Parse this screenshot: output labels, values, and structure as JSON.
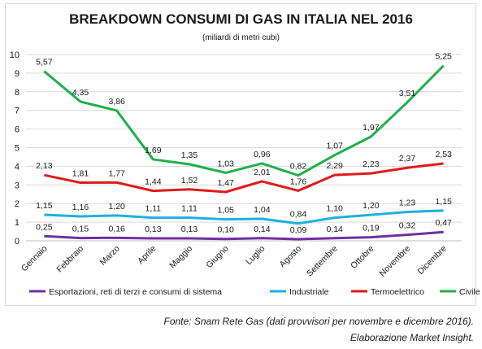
{
  "chart_data": {
    "type": "line",
    "title": "BREAKDOWN CONSUMI DI GAS IN ITALIA NEL 2016",
    "subtitle": "(miliardi di metri cubi)",
    "categories": [
      "Gennaio",
      "Febbraio",
      "Marzo",
      "Aprile",
      "Maggio",
      "Giugno",
      "Luglio",
      "Agosto",
      "Settembre",
      "Ottobre",
      "Novembre",
      "Dicembre"
    ],
    "ylim": [
      0,
      10
    ],
    "yticks": [
      0,
      1,
      2,
      3,
      4,
      5,
      6,
      7,
      8,
      9,
      10
    ],
    "grid": true,
    "legend": "bottom",
    "series": [
      {
        "name": "Esportazioni, reti di terzi e consumi di sistema",
        "color": "#7030a0",
        "values": [
          0.25,
          0.15,
          0.16,
          0.13,
          0.13,
          0.1,
          0.14,
          0.09,
          0.14,
          0.19,
          0.32,
          0.47
        ],
        "labels": [
          "0,25",
          "0,15",
          "0,16",
          "0,13",
          "0,13",
          "0,10",
          "0,14",
          "0,09",
          "0,14",
          "0,19",
          "0,32",
          "0,47"
        ]
      },
      {
        "name": "Industriale",
        "color": "#1fb0e0",
        "values": [
          1.15,
          1.16,
          1.2,
          1.11,
          1.11,
          1.05,
          1.04,
          0.84,
          1.1,
          1.2,
          1.23,
          1.15
        ],
        "labels": [
          "1,15",
          "1,16",
          "1,20",
          "1,11",
          "1,11",
          "1,05",
          "1,04",
          "0,84",
          "1,10",
          "1,20",
          "1,23",
          "1,15"
        ]
      },
      {
        "name": "Termoelettrico",
        "color": "#e01a1a",
        "values": [
          2.13,
          1.81,
          1.77,
          1.44,
          1.52,
          1.47,
          2.01,
          1.76,
          2.29,
          2.23,
          2.37,
          2.53
        ],
        "labels": [
          "2,13",
          "1,81",
          "1,77",
          "1,44",
          "1,52",
          "1,47",
          "2,01",
          "1,76",
          "2,29",
          "2,23",
          "2,37",
          "2,53"
        ]
      },
      {
        "name": "Civile",
        "color": "#1fb04a",
        "values": [
          5.57,
          4.35,
          3.86,
          1.69,
          1.35,
          1.03,
          0.96,
          0.82,
          1.07,
          1.97,
          3.51,
          5.25
        ],
        "labels": [
          "5,57",
          "4,35",
          "3,86",
          "1,69",
          "1,35",
          "1,03",
          "0,96",
          "0,82",
          "1,07",
          "1,97",
          "3,51",
          "5,25"
        ]
      }
    ]
  },
  "footer": {
    "source": "Fonte: Snam Rete Gas (dati provvisori per novembre e dicembre 2016).",
    "credit": "Elaborazione Market Insight."
  }
}
